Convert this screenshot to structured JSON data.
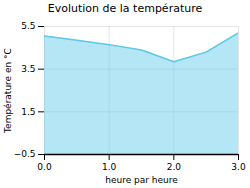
{
  "chart_data": {
    "type": "area",
    "title": "Evolution de la température",
    "xlabel": "heure par heure",
    "ylabel": "Température en °C",
    "x": [
      0,
      0.5,
      1,
      1.5,
      2,
      2.5,
      3
    ],
    "values": [
      5.05,
      4.85,
      4.65,
      4.4,
      3.85,
      4.3,
      5.2
    ],
    "color": "#5bc8e8",
    "xlim": [
      0,
      3
    ],
    "xticks": [
      0,
      1,
      2,
      3
    ],
    "ylim": [
      -0.5,
      5.5
    ],
    "yticks": [
      -0.5,
      1.5,
      3.5,
      5.5
    ],
    "grid": true
  }
}
